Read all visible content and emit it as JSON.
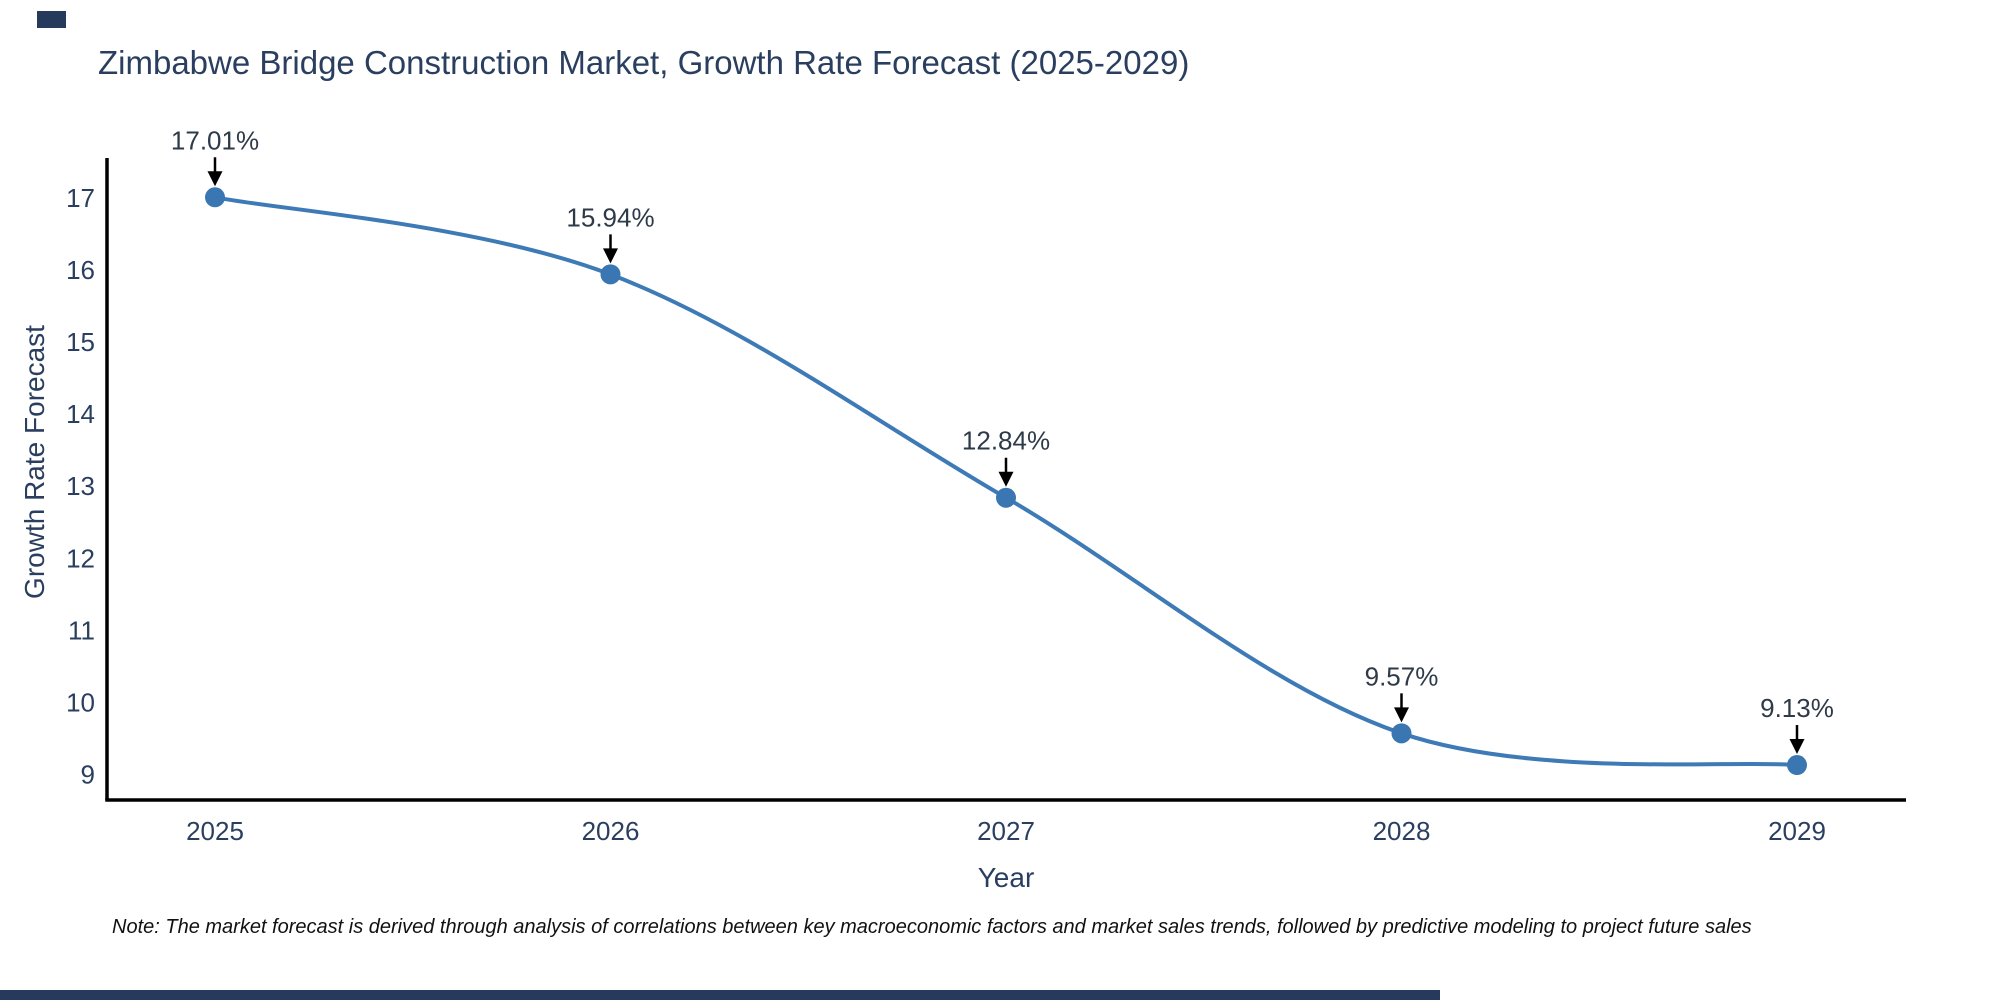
{
  "title": {
    "text": "Zimbabwe Bridge Construction Market, Growth Rate Forecast (2025-2029)"
  },
  "chart_data": {
    "type": "line",
    "x": [
      "2025",
      "2026",
      "2027",
      "2028",
      "2029"
    ],
    "series": [
      {
        "name": "Growth Rate Forecast",
        "values": [
          17.01,
          15.94,
          12.84,
          9.57,
          9.13
        ]
      }
    ],
    "point_labels": [
      "17.01%",
      "15.94%",
      "12.84%",
      "9.57%",
      "9.13%"
    ],
    "title": "Zimbabwe Bridge Construction Market, Growth Rate Forecast (2025-2029)",
    "xlabel": "Year",
    "ylabel": "Growth Rate Forecast",
    "ylim": [
      8.6,
      17.6
    ],
    "yticks": [
      9,
      10,
      11,
      12,
      13,
      14,
      15,
      16,
      17
    ],
    "grid": false,
    "legend": "none",
    "line_shape": "spline",
    "line_color": "#3d7ab6",
    "marker_color": "#3a76b2",
    "axis_color": "#000000",
    "label_color": "#2a3f5f",
    "annotation_color": "#2e3a48",
    "annotation_arrow_color": "#000000"
  },
  "note": {
    "text": "Note: The market forecast is derived through analysis of correlations between key macroeconomic factors and market sales trends, followed by predictive modeling to project future sales"
  },
  "decorations": {
    "accent_color": "#263a5c"
  }
}
